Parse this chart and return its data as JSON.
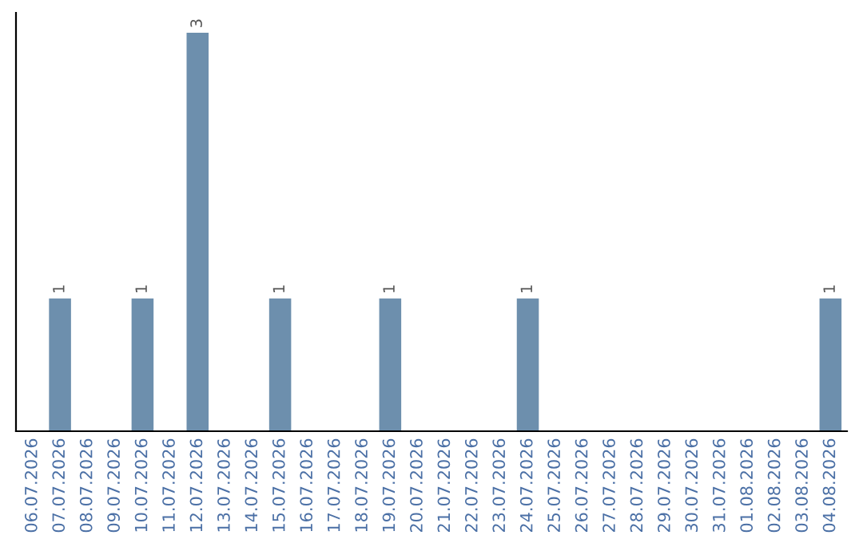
{
  "chart_data": {
    "type": "bar",
    "categories": [
      "06.07.2026",
      "07.07.2026",
      "08.07.2026",
      "09.07.2026",
      "10.07.2026",
      "11.07.2026",
      "12.07.2026",
      "13.07.2026",
      "14.07.2026",
      "15.07.2026",
      "16.07.2026",
      "17.07.2026",
      "18.07.2026",
      "19.07.2026",
      "20.07.2026",
      "21.07.2026",
      "22.07.2026",
      "23.07.2026",
      "24.07.2026",
      "25.07.2026",
      "26.07.2026",
      "27.07.2026",
      "28.07.2026",
      "29.07.2026",
      "30.07.2026",
      "31.07.2026",
      "01.08.2026",
      "02.08.2026",
      "03.08.2026",
      "04.08.2026"
    ],
    "values": [
      0,
      1,
      0,
      0,
      1,
      0,
      3,
      0,
      0,
      1,
      0,
      0,
      0,
      1,
      0,
      0,
      0,
      0,
      1,
      0,
      0,
      0,
      0,
      0,
      0,
      0,
      0,
      0,
      0,
      1
    ],
    "value_labels": [
      null,
      "1",
      null,
      null,
      "1",
      null,
      "3",
      null,
      null,
      "1",
      null,
      null,
      null,
      "1",
      null,
      null,
      null,
      null,
      "1",
      null,
      null,
      null,
      null,
      null,
      null,
      null,
      null,
      null,
      null,
      "1"
    ],
    "color": "#6d8fad",
    "grid": false,
    "legend": false
  }
}
